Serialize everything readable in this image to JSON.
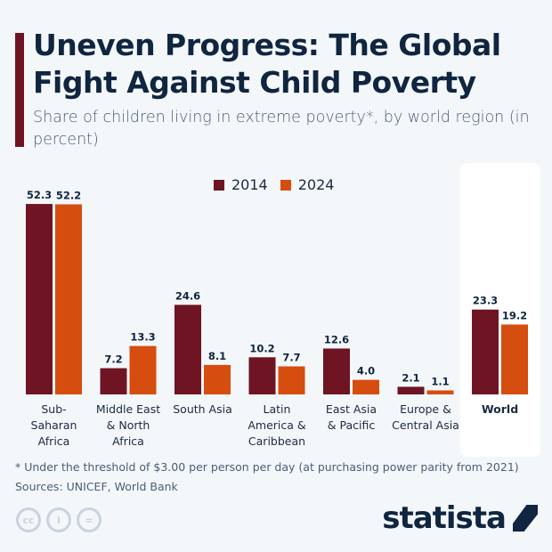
{
  "title": "Uneven Progress: The Global Fight Against Child Poverty",
  "subtitle": "Share of children living in extreme poverty*, by world region (in percent)",
  "footnote": "* Under the threshold of $3.00 per person per day (at purchasing power parity from 2021)",
  "sources": "Sources: UNICEF, World Bank",
  "brand": "statista",
  "colors": {
    "2014": "#6e1423",
    "2024": "#d64d10"
  },
  "chart_data": {
    "type": "bar",
    "categories": [
      "Sub-Saharan Africa",
      "Middle East & North Africa",
      "South Asia",
      "Latin America & Caribbean",
      "East Asia & Pacific",
      "Europe & Central Asia",
      "World"
    ],
    "series": [
      {
        "name": "2014",
        "values": [
          52.3,
          7.2,
          24.6,
          10.2,
          12.6,
          2.1,
          23.3
        ]
      },
      {
        "name": "2024",
        "values": [
          52.2,
          13.3,
          8.1,
          7.7,
          4.0,
          1.1,
          19.2
        ]
      }
    ],
    "value_labels": {
      "2014": [
        "52.3",
        "7.2",
        "24.6",
        "10.2",
        "12.6",
        "2.1",
        "23.3"
      ],
      "2024": [
        "52.2",
        "13.3",
        "8.1",
        "7.7",
        "4.0",
        "1.1",
        "19.2"
      ]
    },
    "category_lines": [
      [
        "Sub-",
        "Saharan",
        "Africa"
      ],
      [
        "Middle East",
        "& North",
        "Africa"
      ],
      [
        "South Asia"
      ],
      [
        "Latin",
        "America &",
        "Caribbean"
      ],
      [
        "East Asia",
        "& Pacific"
      ],
      [
        "Europe &",
        "Central Asia"
      ],
      [
        "World"
      ]
    ],
    "legend_position": "top-center",
    "grid": false,
    "highlighted_category": "World"
  }
}
